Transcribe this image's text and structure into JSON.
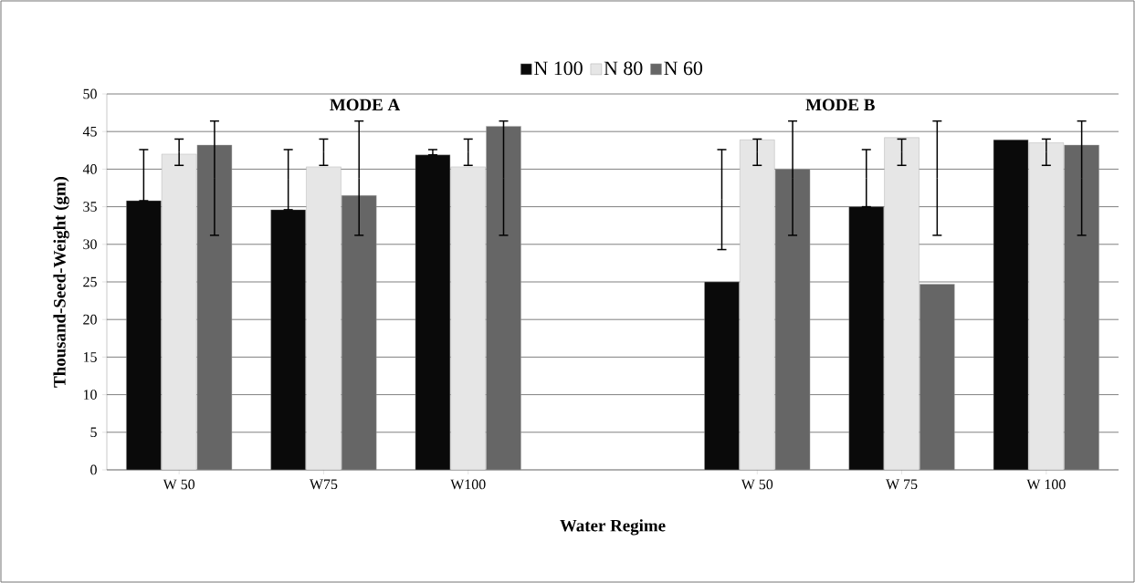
{
  "chart_data": {
    "type": "bar",
    "xlabel": "Water Regime",
    "ylabel": "Thousand-Seed-Weight (gm)",
    "categories": [
      "W 50",
      "W75",
      "W100",
      null,
      "W 50",
      "W 75",
      "W 100"
    ],
    "series": [
      {
        "name": "N 100",
        "color": "#0a0a0a",
        "values": [
          35.8,
          34.6,
          41.9,
          null,
          25.0,
          35.0,
          43.9
        ],
        "errors": [
          [
            35.8,
            42.6
          ],
          [
            34.6,
            42.6
          ],
          [
            41.9,
            42.6
          ],
          null,
          [
            29.3,
            42.6
          ],
          [
            35.0,
            42.6
          ],
          null
        ]
      },
      {
        "name": "N 80",
        "color": "#e6e6e6",
        "values": [
          42.0,
          40.3,
          40.3,
          null,
          43.9,
          44.2,
          43.5
        ],
        "errors": [
          [
            40.5,
            44.0
          ],
          [
            40.5,
            44.0
          ],
          [
            40.5,
            44.0
          ],
          null,
          [
            40.5,
            44.0
          ],
          [
            40.5,
            44.0
          ],
          [
            40.5,
            44.0
          ]
        ]
      },
      {
        "name": "N 60",
        "color": "#666666",
        "values": [
          43.2,
          36.5,
          45.7,
          null,
          40.0,
          24.7,
          43.2
        ],
        "errors": [
          [
            31.2,
            46.4
          ],
          [
            31.2,
            46.4
          ],
          [
            31.2,
            46.4
          ],
          null,
          [
            31.2,
            46.4
          ],
          [
            31.2,
            46.4
          ],
          [
            31.2,
            46.4
          ]
        ]
      }
    ],
    "ylim": [
      0,
      50
    ],
    "yticks": [
      0,
      5,
      10,
      15,
      20,
      25,
      30,
      35,
      40,
      45,
      50
    ],
    "grid": "y",
    "legend": "top",
    "annotations": [
      "MODE A",
      "MODE B"
    ]
  }
}
